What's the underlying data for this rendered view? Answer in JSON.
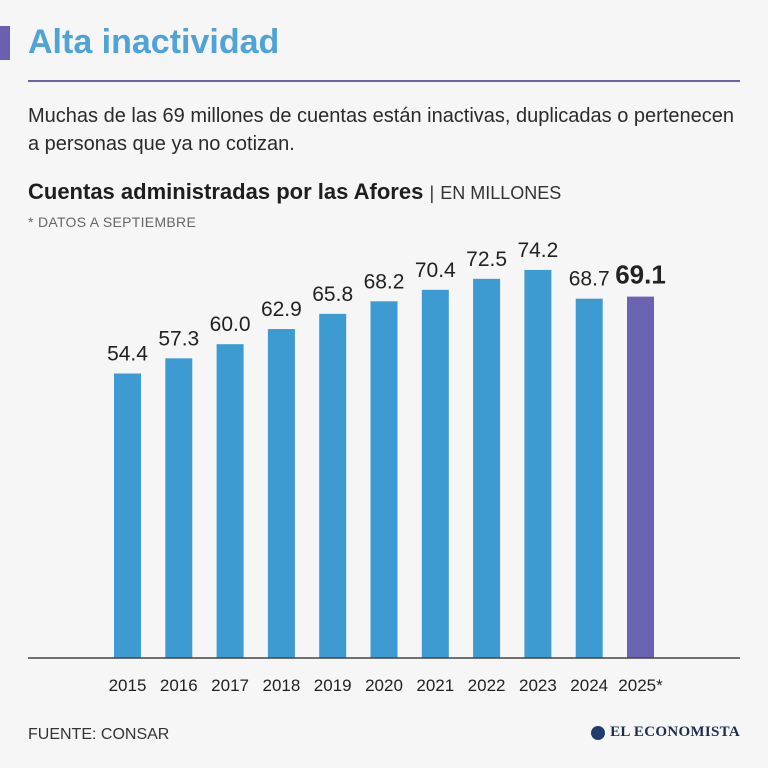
{
  "header": {
    "title": "Alta inactividad",
    "subtitle": "Muchas de las 69 millones de cuentas están inactivas, duplicadas o pertenecen a personas que ya no cotizan."
  },
  "chart_title": {
    "main": "Cuentas administradas por las Afores",
    "separator": "|",
    "unit": "EN MILLONES",
    "footnote": "* DATOS A SEPTIEMBRE"
  },
  "chart_data": {
    "type": "bar",
    "title": "Cuentas administradas por las Afores",
    "ylabel": "EN MILLONES",
    "xlabel": "",
    "categories": [
      "2015",
      "2016",
      "2017",
      "2018",
      "2019",
      "2020",
      "2021",
      "2022",
      "2023",
      "2024",
      "2025*"
    ],
    "values": [
      54.4,
      57.3,
      60.0,
      62.9,
      65.8,
      68.2,
      70.4,
      72.5,
      74.2,
      68.7,
      69.1
    ],
    "value_labels": [
      "54.4",
      "57.3",
      "60.0",
      "62.9",
      "65.8",
      "68.2",
      "70.4",
      "72.5",
      "74.2",
      "68.7",
      "69.1"
    ],
    "highlight_index": 10,
    "colors": {
      "bar": "#3e9bd1",
      "highlight": "#6a63b1"
    },
    "grid": false,
    "legend": "none"
  },
  "footer": {
    "source": "FUENTE: CONSAR",
    "brand": "EL ECONOMISTA"
  }
}
